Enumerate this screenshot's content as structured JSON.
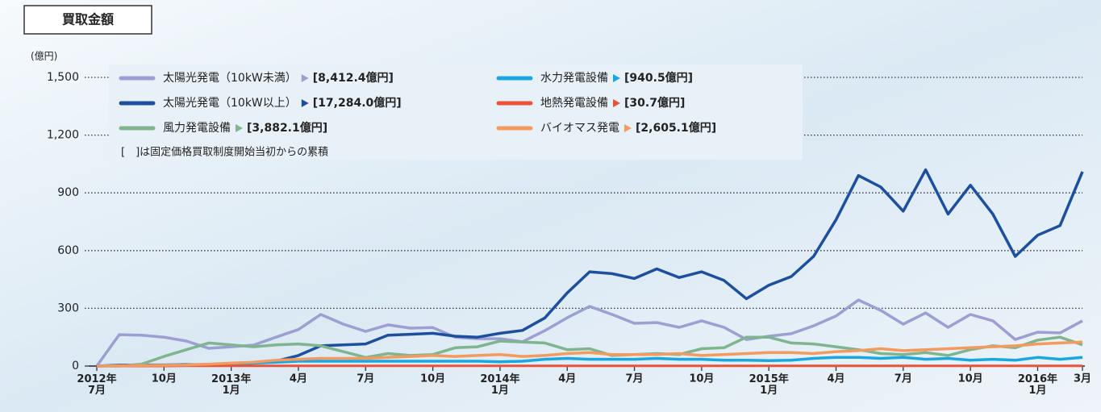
{
  "header_label": "買取金額",
  "chart_data": {
    "type": "line",
    "y_unit": "(億円)",
    "note": "[　]は固定価格買取制度開始当初からの累積",
    "categories": [
      "2012年\n7月",
      null,
      null,
      "10月",
      null,
      null,
      "2013年\n1月",
      null,
      null,
      "4月",
      null,
      null,
      "7月",
      null,
      null,
      "10月",
      null,
      null,
      "2014年\n1月",
      null,
      null,
      "4月",
      null,
      null,
      "7月",
      null,
      null,
      "10月",
      null,
      null,
      "2015年\n1月",
      null,
      null,
      "4月",
      null,
      null,
      "7月",
      null,
      null,
      "10月",
      null,
      null,
      "2016年\n1月",
      null,
      "3月"
    ],
    "ylim": [
      0,
      1500
    ],
    "yticks": [
      0,
      300,
      600,
      900,
      {
        "value": 1200,
        "label": "1,200"
      },
      {
        "value": 1500,
        "label": "1,500"
      }
    ],
    "grid": true,
    "series": [
      {
        "name": "太陽光発電（10kW未満）",
        "cumulative": "[8,412.4億円]",
        "color": "#9d9fd3",
        "values": [
          0,
          163,
          160,
          150,
          130,
          92,
          100,
          109,
          150,
          190,
          268,
          218,
          180,
          214,
          197,
          200,
          150,
          142,
          142,
          126,
          184,
          251,
          310,
          268,
          222,
          226,
          201,
          235,
          201,
          138,
          155,
          168,
          209,
          260,
          343,
          289,
          218,
          276,
          201,
          268,
          235,
          138,
          176,
          172,
          235
        ]
      },
      {
        "name": "太陽光発電（10kW以上）",
        "cumulative": "[17,284.0億円]",
        "color": "#1d4f9f",
        "values": [
          0,
          5,
          5,
          6,
          7,
          8,
          10,
          15,
          25,
          55,
          105,
          110,
          115,
          160,
          165,
          170,
          155,
          150,
          170,
          185,
          250,
          380,
          490,
          480,
          455,
          505,
          460,
          490,
          445,
          350,
          420,
          465,
          570,
          760,
          990,
          930,
          805,
          1020,
          790,
          940,
          790,
          570,
          680,
          730,
          1010
        ]
      },
      {
        "name": "風力発電設備",
        "cumulative": "[3,882.1億円]",
        "color": "#7fb58e",
        "values": [
          0,
          0,
          10,
          50,
          85,
          120,
          110,
          100,
          110,
          115,
          105,
          75,
          45,
          65,
          55,
          60,
          95,
          100,
          130,
          125,
          120,
          85,
          90,
          55,
          60,
          65,
          60,
          90,
          95,
          150,
          150,
          120,
          115,
          100,
          85,
          65,
          60,
          70,
          55,
          85,
          105,
          95,
          135,
          150,
          110
        ]
      },
      {
        "name": "水力発電設備",
        "cumulative": "[940.5億円]",
        "color": "#1aa7e1",
        "values": [
          0,
          2,
          3,
          4,
          5,
          8,
          10,
          15,
          20,
          25,
          25,
          25,
          25,
          25,
          25,
          25,
          25,
          25,
          22,
          25,
          35,
          40,
          35,
          35,
          35,
          40,
          35,
          35,
          30,
          30,
          28,
          30,
          40,
          45,
          45,
          40,
          45,
          35,
          40,
          30,
          35,
          30,
          45,
          35,
          45
        ]
      },
      {
        "name": "地熱発電設備",
        "cumulative": "[30.7億円]",
        "color": "#e8533a",
        "values": [
          0,
          0,
          0,
          0,
          1,
          1,
          1,
          1,
          1,
          1,
          1,
          1,
          1,
          1,
          1,
          1,
          1,
          1,
          1,
          1,
          1,
          1,
          1,
          1,
          1,
          1,
          1,
          1,
          1,
          1,
          1,
          1,
          1,
          1,
          1,
          1,
          1,
          1,
          1,
          1,
          1,
          1,
          1,
          1,
          1
        ]
      },
      {
        "name": "バイオマス発電",
        "cumulative": "[2,605.1億円]",
        "color": "#f39a5f",
        "values": [
          0,
          2,
          3,
          4,
          5,
          10,
          15,
          20,
          30,
          35,
          40,
          40,
          40,
          45,
          50,
          55,
          50,
          55,
          60,
          50,
          55,
          65,
          70,
          60,
          60,
          60,
          65,
          55,
          60,
          65,
          70,
          70,
          65,
          75,
          80,
          90,
          80,
          85,
          90,
          95,
          100,
          105,
          115,
          120,
          125
        ]
      }
    ]
  }
}
